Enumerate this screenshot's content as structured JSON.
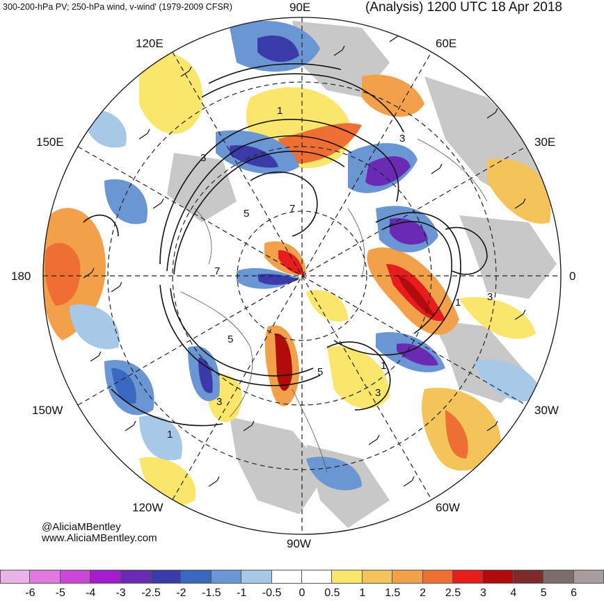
{
  "header": {
    "left_title": "300-200-hPa PV; 250-hPa wind, v-wind' (1979-2009 CFSR)",
    "right_title": "(Analysis) 1200 UTC 18 Apr 2018"
  },
  "longitude_labels": {
    "e90": "90E",
    "e60": "60E",
    "e120": "120E",
    "e150": "150E",
    "e30": "30E",
    "l180": "180",
    "l0": "0",
    "w150": "150W",
    "w30": "30W",
    "w120": "120W",
    "w60": "60W",
    "w90": "90W"
  },
  "credit": {
    "handle": "@AliciaMBentley",
    "website": "www.AliciaMBentley.com"
  },
  "pv_contour_labels": [
    "1",
    "3",
    "5",
    "7",
    "7",
    "5",
    "3",
    "1",
    "3",
    "5",
    "3",
    "1",
    "1",
    "3"
  ],
  "colorbar": {
    "colors": [
      "#e8b4e8",
      "#e07ae0",
      "#cc44d8",
      "#a41ccc",
      "#6a2ab4",
      "#3a3aa8",
      "#3a68c0",
      "#6a96d4",
      "#a8c8e8",
      "#ffffff",
      "#ffffff",
      "#fae66a",
      "#f4c45a",
      "#f2a04a",
      "#ee6e34",
      "#e81c1c",
      "#b00c0c",
      "#7c2a2a",
      "#7c6c6c",
      "#a89c9c"
    ],
    "ticks": [
      "-6",
      "-5",
      "-4",
      "-3",
      "-2.5",
      "-2",
      "-1.5",
      "-1",
      "-0.5",
      "0",
      "0.5",
      "1",
      "1.5",
      "2",
      "2.5",
      "3",
      "4",
      "5",
      "6"
    ]
  }
}
